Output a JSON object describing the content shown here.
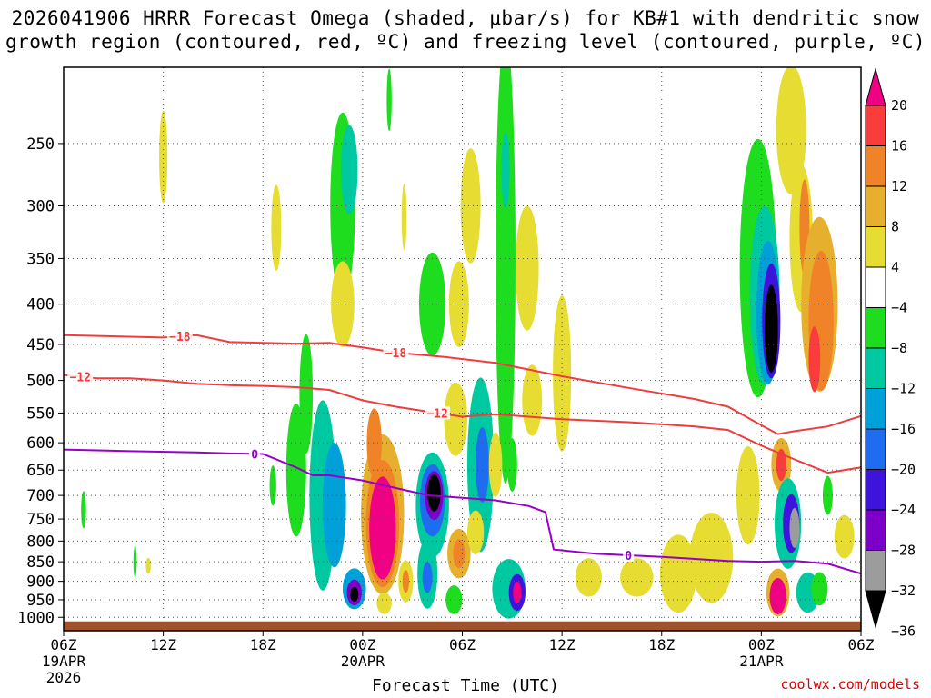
{
  "title": {
    "line1": "2026041906 HRRR Forecast Omega (shaded, μbar/s) for KB#1 with dendritic snow",
    "line2": "growth region (contoured, red, ºC) and freezing level (contoured, purple, ºC)"
  },
  "credit": "coolwx.com/models",
  "chart_data": {
    "type": "heatmap",
    "xlabel": "Forecast Time (UTC)",
    "x_range_hours": [
      0,
      48
    ],
    "y_range_hPa": [
      1040,
      200
    ],
    "y_scale": "log-pressure",
    "grid": true,
    "yticks": [
      250,
      300,
      350,
      400,
      450,
      500,
      550,
      600,
      650,
      700,
      750,
      800,
      850,
      900,
      950,
      1000
    ],
    "xticks": [
      {
        "hour": 0,
        "lines": [
          "06Z",
          "19APR",
          "2026"
        ]
      },
      {
        "hour": 6,
        "lines": [
          "12Z"
        ]
      },
      {
        "hour": 12,
        "lines": [
          "18Z"
        ]
      },
      {
        "hour": 18,
        "lines": [
          "00Z",
          "20APR"
        ]
      },
      {
        "hour": 24,
        "lines": [
          "06Z"
        ]
      },
      {
        "hour": 30,
        "lines": [
          "12Z"
        ]
      },
      {
        "hour": 36,
        "lines": [
          "18Z"
        ]
      },
      {
        "hour": 42,
        "lines": [
          "00Z",
          "21APR"
        ]
      },
      {
        "hour": 48,
        "lines": [
          "06Z"
        ]
      }
    ],
    "colorbar": {
      "levels": [
        -36,
        -32,
        -28,
        -24,
        -20,
        -16,
        -12,
        -8,
        -4,
        4,
        8,
        12,
        16,
        20
      ],
      "labels": [
        "20",
        "16",
        "12",
        "8",
        "4",
        "−4",
        "−8",
        "−12",
        "−16",
        "−20",
        "−24",
        "−28",
        "−32",
        "−36"
      ],
      "colors": [
        "#000000",
        "#9c9c9c",
        "#7d00c8",
        "#3c14dc",
        "#1e6cf0",
        "#00a0d8",
        "#00c8a0",
        "#1edc1e",
        "#ffffff",
        "#e6dc32",
        "#e6af2d",
        "#f08228",
        "#fa3c3c",
        "#f00082"
      ]
    },
    "contours": [
      {
        "name": "-18",
        "label": "−18",
        "color": "#f03c3c",
        "points": [
          [
            0,
            438
          ],
          [
            6,
            441
          ],
          [
            8,
            438
          ],
          [
            10,
            447
          ],
          [
            14,
            449
          ],
          [
            16,
            448
          ],
          [
            18,
            454
          ],
          [
            20,
            461
          ],
          [
            23,
            467
          ],
          [
            26,
            475
          ],
          [
            30,
            494
          ],
          [
            34,
            511
          ],
          [
            38,
            528
          ],
          [
            40,
            540
          ],
          [
            42,
            570
          ],
          [
            43,
            585
          ],
          [
            44,
            580
          ],
          [
            46,
            572
          ],
          [
            48,
            555
          ]
        ],
        "label_hours": [
          7,
          20
        ]
      },
      {
        "name": "-12",
        "label": "−12",
        "color": "#f03c3c",
        "points": [
          [
            0,
            492
          ],
          [
            2,
            497
          ],
          [
            4,
            497
          ],
          [
            6,
            500
          ],
          [
            8,
            505
          ],
          [
            10,
            507
          ],
          [
            12,
            508
          ],
          [
            14,
            510
          ],
          [
            16,
            514
          ],
          [
            18,
            530
          ],
          [
            20,
            540
          ],
          [
            22,
            548
          ],
          [
            24,
            556
          ],
          [
            26,
            552
          ],
          [
            30,
            560
          ],
          [
            34,
            565
          ],
          [
            38,
            572
          ],
          [
            40,
            578
          ],
          [
            42,
            605
          ],
          [
            44,
            630
          ],
          [
            46,
            655
          ],
          [
            48,
            645
          ]
        ],
        "label_hours": [
          1,
          22.5
        ]
      },
      {
        "name": "0",
        "label": "0",
        "color": "#9600c8",
        "points": [
          [
            0,
            612
          ],
          [
            4,
            615
          ],
          [
            8,
            617
          ],
          [
            10,
            619
          ],
          [
            12,
            620
          ],
          [
            14,
            645
          ],
          [
            15,
            660
          ],
          [
            16,
            660
          ],
          [
            18,
            670
          ],
          [
            20,
            685
          ],
          [
            22,
            700
          ],
          [
            24,
            705
          ],
          [
            26,
            710
          ],
          [
            28,
            722
          ],
          [
            29,
            735
          ],
          [
            29.5,
            820
          ],
          [
            32,
            830
          ],
          [
            36,
            838
          ],
          [
            38,
            843
          ],
          [
            40,
            848
          ],
          [
            42,
            850
          ],
          [
            44,
            848
          ],
          [
            46,
            855
          ],
          [
            48,
            880
          ]
        ],
        "label_hours": [
          11.5,
          34
        ]
      }
    ],
    "omega_cells": [
      {
        "t": 14,
        "p": 650,
        "dt": 1.2,
        "dp": 250,
        "v": -8
      },
      {
        "t": 14.6,
        "p": 520,
        "dt": 0.8,
        "dp": 180,
        "v": -8
      },
      {
        "t": 15.6,
        "p": 700,
        "dt": 1.6,
        "dp": 380,
        "v": -12
      },
      {
        "t": 16.3,
        "p": 720,
        "dt": 1.4,
        "dp": 260,
        "v": -16
      },
      {
        "t": 16.8,
        "p": 300,
        "dt": 1.5,
        "dp": 160,
        "v": -8
      },
      {
        "t": 16.8,
        "p": 400,
        "dt": 1.4,
        "dp": 100,
        "v": 6
      },
      {
        "t": 17.2,
        "p": 270,
        "dt": 1.0,
        "dp": 70,
        "v": -12
      },
      {
        "t": 17.5,
        "p": 920,
        "dt": 1.4,
        "dp": 110,
        "v": -16
      },
      {
        "t": 17.5,
        "p": 930,
        "dt": 0.9,
        "dp": 70,
        "v": -28
      },
      {
        "t": 17.5,
        "p": 935,
        "dt": 0.5,
        "dp": 40,
        "v": -36
      },
      {
        "t": 19.2,
        "p": 740,
        "dt": 2.6,
        "dp": 340,
        "v": 8
      },
      {
        "t": 19.2,
        "p": 760,
        "dt": 2.0,
        "dp": 280,
        "v": 14
      },
      {
        "t": 19.2,
        "p": 770,
        "dt": 1.6,
        "dp": 230,
        "v": 20
      },
      {
        "t": 18.7,
        "p": 600,
        "dt": 0.9,
        "dp": 120,
        "v": 12
      },
      {
        "t": 19.3,
        "p": 960,
        "dt": 0.9,
        "dp": 60,
        "v": 6
      },
      {
        "t": 22.2,
        "p": 720,
        "dt": 2.0,
        "dp": 220,
        "v": -12
      },
      {
        "t": 22.2,
        "p": 710,
        "dt": 1.5,
        "dp": 150,
        "v": -20
      },
      {
        "t": 22.3,
        "p": 700,
        "dt": 1.1,
        "dp": 100,
        "v": -28
      },
      {
        "t": 22.3,
        "p": 695,
        "dt": 0.8,
        "dp": 75,
        "v": -36
      },
      {
        "t": 21.9,
        "p": 880,
        "dt": 1.2,
        "dp": 180,
        "v": -12
      },
      {
        "t": 21.9,
        "p": 890,
        "dt": 0.6,
        "dp": 80,
        "v": -20
      },
      {
        "t": 20.6,
        "p": 900,
        "dt": 0.9,
        "dp": 110,
        "v": 6
      },
      {
        "t": 20.6,
        "p": 900,
        "dt": 0.4,
        "dp": 60,
        "v": 12
      },
      {
        "t": 22.2,
        "p": 400,
        "dt": 1.6,
        "dp": 120,
        "v": -8
      },
      {
        "t": 23.8,
        "p": 400,
        "dt": 1.2,
        "dp": 100,
        "v": 6
      },
      {
        "t": 23.6,
        "p": 560,
        "dt": 1.4,
        "dp": 120,
        "v": 6
      },
      {
        "t": 23.5,
        "p": 950,
        "dt": 1.0,
        "dp": 80,
        "v": -8
      },
      {
        "t": 23.8,
        "p": 830,
        "dt": 1.4,
        "dp": 120,
        "v": 8
      },
      {
        "t": 23.8,
        "p": 830,
        "dt": 0.7,
        "dp": 70,
        "v": 14
      },
      {
        "t": 24.5,
        "p": 300,
        "dt": 1.2,
        "dp": 100,
        "v": 6
      },
      {
        "t": 25.1,
        "p": 640,
        "dt": 1.6,
        "dp": 320,
        "v": -12
      },
      {
        "t": 25.2,
        "p": 640,
        "dt": 0.8,
        "dp": 140,
        "v": -20
      },
      {
        "t": 24.8,
        "p": 780,
        "dt": 1.0,
        "dp": 100,
        "v": 6
      },
      {
        "t": 26.6,
        "p": 350,
        "dt": 1.2,
        "dp": 420,
        "v": -8
      },
      {
        "t": 26.6,
        "p": 270,
        "dt": 0.5,
        "dp": 60,
        "v": -12
      },
      {
        "t": 26.0,
        "p": 640,
        "dt": 0.8,
        "dp": 120,
        "v": 6
      },
      {
        "t": 27.0,
        "p": 640,
        "dt": 0.6,
        "dp": 100,
        "v": -8
      },
      {
        "t": 26.8,
        "p": 920,
        "dt": 2.0,
        "dp": 160,
        "v": -12
      },
      {
        "t": 27.3,
        "p": 930,
        "dt": 1.0,
        "dp": 100,
        "v": -24
      },
      {
        "t": 27.3,
        "p": 930,
        "dt": 0.5,
        "dp": 60,
        "v": 20
      },
      {
        "t": 27.9,
        "p": 360,
        "dt": 1.4,
        "dp": 130,
        "v": 6
      },
      {
        "t": 28.2,
        "p": 530,
        "dt": 1.2,
        "dp": 110,
        "v": 6
      },
      {
        "t": 30.0,
        "p": 490,
        "dt": 1.1,
        "dp": 220,
        "v": 6
      },
      {
        "t": 31.6,
        "p": 890,
        "dt": 1.6,
        "dp": 100,
        "v": 6
      },
      {
        "t": 34.5,
        "p": 890,
        "dt": 2.0,
        "dp": 100,
        "v": 6
      },
      {
        "t": 37.0,
        "p": 880,
        "dt": 2.2,
        "dp": 200,
        "v": 6
      },
      {
        "t": 39.0,
        "p": 840,
        "dt": 2.6,
        "dp": 220,
        "v": 6
      },
      {
        "t": 41.2,
        "p": 700,
        "dt": 1.4,
        "dp": 200,
        "v": 6
      },
      {
        "t": 41.8,
        "p": 360,
        "dt": 2.2,
        "dp": 260,
        "v": -8
      },
      {
        "t": 42.2,
        "p": 390,
        "dt": 1.8,
        "dp": 200,
        "v": -12
      },
      {
        "t": 42.4,
        "p": 410,
        "dt": 1.4,
        "dp": 170,
        "v": -16
      },
      {
        "t": 42.6,
        "p": 420,
        "dt": 1.1,
        "dp": 140,
        "v": -24
      },
      {
        "t": 42.6,
        "p": 430,
        "dt": 0.8,
        "dp": 110,
        "v": -36
      },
      {
        "t": 43.8,
        "p": 240,
        "dt": 1.8,
        "dp": 90,
        "v": 6
      },
      {
        "t": 44.4,
        "p": 330,
        "dt": 1.4,
        "dp": 140,
        "v": 6
      },
      {
        "t": 44.6,
        "p": 320,
        "dt": 0.6,
        "dp": 90,
        "v": 14
      },
      {
        "t": 45.5,
        "p": 400,
        "dt": 2.2,
        "dp": 200,
        "v": 8
      },
      {
        "t": 45.6,
        "p": 420,
        "dt": 1.5,
        "dp": 170,
        "v": 12
      },
      {
        "t": 45.2,
        "p": 470,
        "dt": 0.7,
        "dp": 90,
        "v": 18
      },
      {
        "t": 43.2,
        "p": 640,
        "dt": 1.2,
        "dp": 100,
        "v": 8
      },
      {
        "t": 43.2,
        "p": 640,
        "dt": 0.6,
        "dp": 60,
        "v": 16
      },
      {
        "t": 43.6,
        "p": 760,
        "dt": 1.6,
        "dp": 200,
        "v": -12
      },
      {
        "t": 43.8,
        "p": 760,
        "dt": 1.0,
        "dp": 130,
        "v": -24
      },
      {
        "t": 44.0,
        "p": 770,
        "dt": 0.6,
        "dp": 90,
        "v": -32
      },
      {
        "t": 43.0,
        "p": 930,
        "dt": 1.4,
        "dp": 130,
        "v": 8
      },
      {
        "t": 43.0,
        "p": 940,
        "dt": 1.0,
        "dp": 100,
        "v": 20
      },
      {
        "t": 44.8,
        "p": 930,
        "dt": 1.4,
        "dp": 110,
        "v": -12
      },
      {
        "t": 45.5,
        "p": 920,
        "dt": 1.0,
        "dp": 90,
        "v": -8
      },
      {
        "t": 46.0,
        "p": 700,
        "dt": 0.6,
        "dp": 80,
        "v": -8
      },
      {
        "t": 47.0,
        "p": 790,
        "dt": 1.2,
        "dp": 100,
        "v": 6
      },
      {
        "t": 6.0,
        "p": 260,
        "dt": 0.5,
        "dp": 70,
        "v": 6
      },
      {
        "t": 1.2,
        "p": 730,
        "dt": 0.3,
        "dp": 80,
        "v": -8
      },
      {
        "t": 4.3,
        "p": 850,
        "dt": 0.2,
        "dp": 80,
        "v": -8
      },
      {
        "t": 5.1,
        "p": 860,
        "dt": 0.3,
        "dp": 40,
        "v": 6
      },
      {
        "t": 12.8,
        "p": 320,
        "dt": 0.6,
        "dp": 80,
        "v": 6
      },
      {
        "t": 12.6,
        "p": 680,
        "dt": 0.4,
        "dp": 80,
        "v": -8
      },
      {
        "t": 19.6,
        "p": 220,
        "dt": 0.3,
        "dp": 40,
        "v": -8
      },
      {
        "t": 20.5,
        "p": 310,
        "dt": 0.3,
        "dp": 60,
        "v": 6
      }
    ],
    "ground_level_hPa": 1012
  }
}
